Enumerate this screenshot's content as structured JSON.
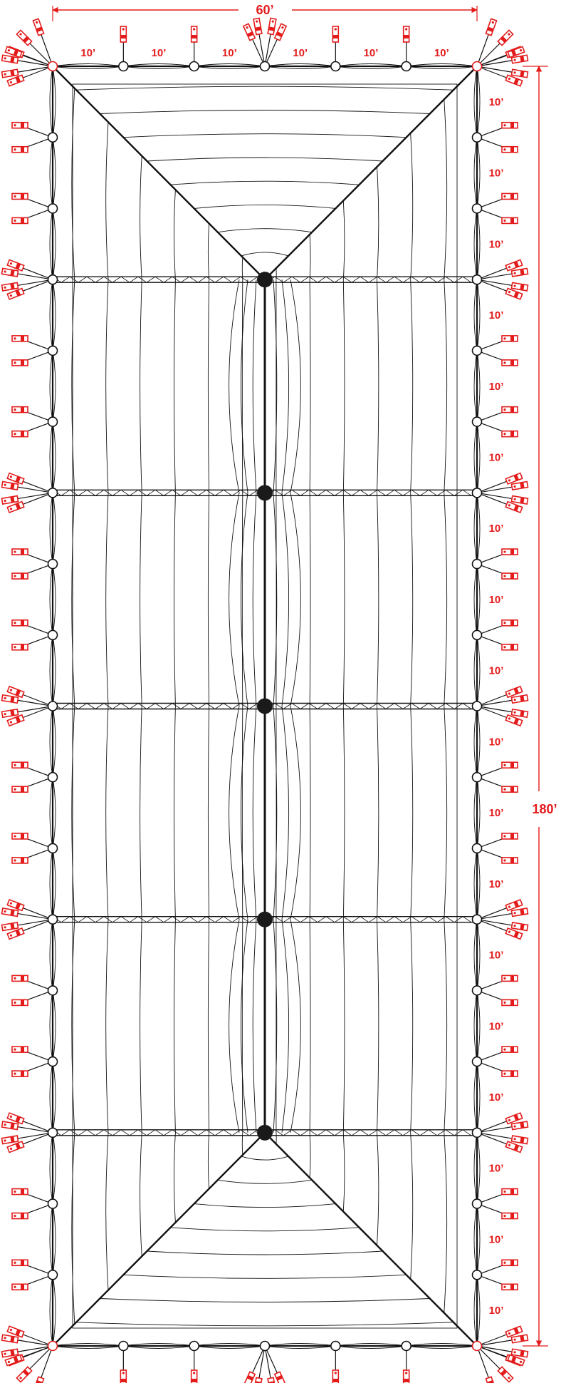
{
  "dimensions": {
    "overall_width": "60’",
    "overall_length": "180’",
    "segment_labels_top": [
      "10’",
      "10’",
      "10’",
      "10’",
      "10’",
      "10’"
    ],
    "segment_labels_right": [
      "10’",
      "10’",
      "10’",
      "10’",
      "10’",
      "10’",
      "10’",
      "10’",
      "10’",
      "10’",
      "10’",
      "10’",
      "10’",
      "10’",
      "10’",
      "10’",
      "10’",
      "10’"
    ]
  },
  "structure": {
    "bays_across": 6,
    "bays_along": 18,
    "cross_frame_rows": [
      3,
      6,
      9,
      12,
      15
    ],
    "center_pole_count": 5
  },
  "colors": {
    "outline": "#111111",
    "dimension": "#e31b1b",
    "stake": "#e31b1b",
    "pole": "#1a1a1a"
  }
}
